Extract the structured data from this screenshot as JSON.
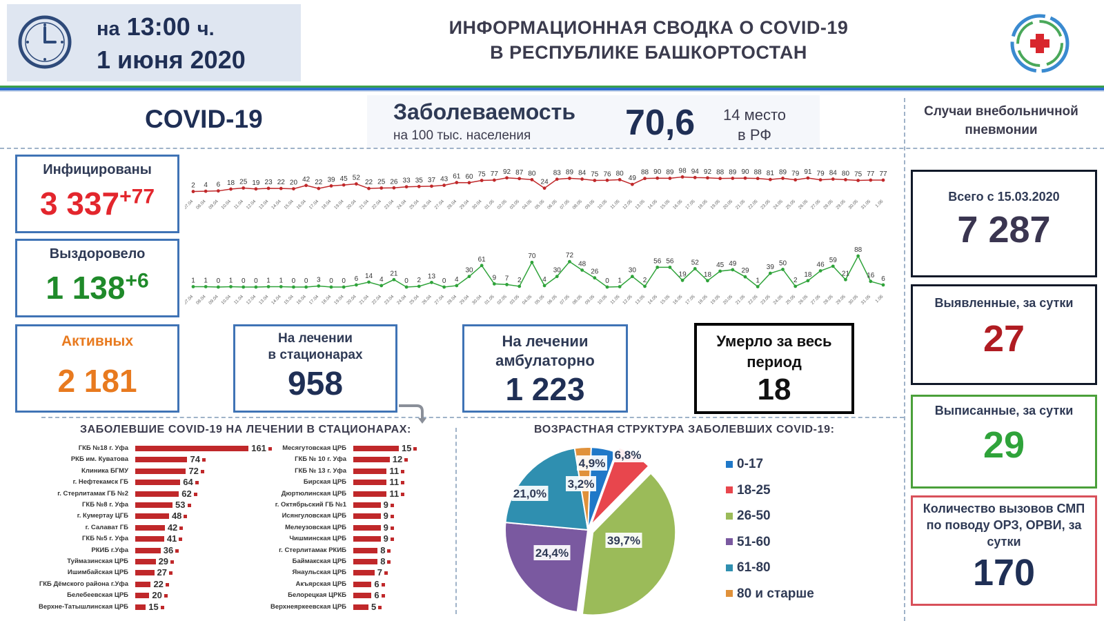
{
  "header": {
    "time_prefix": "на",
    "time": "13:00",
    "time_suffix": "ч.",
    "date": "1 июня 2020",
    "title_line1": "ИНФОРМАЦИОННАЯ СВОДКА О COVID-19",
    "title_line2": "В РЕСПУБЛИКЕ БАШКОРТОСТАН",
    "clock_icon": "clock-icon",
    "logo_icon": "medical-cross-logo"
  },
  "top": {
    "covid_label": "COVID-19",
    "incidence_label": "Заболеваемость",
    "incidence_sub": "на 100 тыс. населения",
    "incidence_value": "70,6",
    "rank_line1": "14 место",
    "rank_line2": "в РФ",
    "pneumonia_title": "Случаи внебольничной пневмонии"
  },
  "stats": {
    "infected_title": "Инфицированы",
    "infected_value": "3 337",
    "infected_delta": "+77",
    "recovered_title": "Выздоровело",
    "recovered_value": "1 138",
    "recovered_delta": "+6",
    "active_title": "Активных",
    "active_value": "2 181",
    "hosp_title_1": "На лечении",
    "hosp_title_2": "в стационарах",
    "hosp_value": "958",
    "amb_title_1": "На лечении",
    "amb_title_2": "амбулаторно",
    "amb_value": "1 223",
    "deaths_title_1": "Умерло за весь",
    "deaths_title_2": "период",
    "deaths_value": "18"
  },
  "pneumonia": {
    "total_title": "Всего с 15.03.2020",
    "total_value": "7 287",
    "detected_title": "Выявленные, за сутки",
    "detected_value": "27",
    "discharged_title": "Выписанные, за сутки",
    "discharged_value": "29",
    "calls_title": "Количество вызовов СМП по поводу ОРЗ, ОРВИ, за сутки",
    "calls_value": "170"
  },
  "colors": {
    "infected_line": "#c0282a",
    "recovered_line": "#2fa33a",
    "red": "#e3262d",
    "green": "#1f8a2a",
    "orange": "#e87a1f",
    "navy": "#1f2f55",
    "purple_navy": "#3a3550",
    "box_border": "#3f73b5"
  },
  "sections": {
    "hosp_title": "ЗАБОЛЕВШИЕ COVID-19 НА ЛЕЧЕНИИ В СТАЦИОНАРАХ:",
    "age_title": "ВОЗРАСТНАЯ СТРУКТУРА ЗАБОЛЕВШИХ COVID-19:"
  },
  "chart_data": [
    {
      "type": "line",
      "name": "daily-infected",
      "x": [
        "07.04",
        "08.04",
        "09.04",
        "10.04",
        "11.04",
        "12.04",
        "13.04",
        "14.04",
        "15.04",
        "16.04",
        "17.04",
        "18.04",
        "19.04",
        "20.04",
        "21.04",
        "22.04",
        "23.04",
        "24.04",
        "25.04",
        "26.04",
        "27.04",
        "28.04",
        "29.04",
        "30.04",
        "01.05",
        "02.05",
        "03.05",
        "04.05",
        "05.05",
        "06.05",
        "07.05",
        "08.05",
        "09.05",
        "10.05",
        "11.05",
        "12.05",
        "13.05",
        "14.05",
        "15.05",
        "16.05",
        "17.05",
        "18.05",
        "19.05",
        "20.05",
        "21.05",
        "22.05",
        "23.05",
        "24.05",
        "25.05",
        "26.05",
        "27.05",
        "28.05",
        "29.05",
        "30.05",
        "31.05",
        "1.06"
      ],
      "values": [
        2,
        4,
        6,
        18,
        25,
        19,
        23,
        22,
        20,
        42,
        22,
        39,
        45,
        52,
        22,
        25,
        26,
        33,
        35,
        37,
        43,
        61,
        60,
        75,
        77,
        92,
        87,
        80,
        24,
        83,
        89,
        84,
        75,
        76,
        80,
        49,
        88,
        90,
        89,
        98,
        94,
        92,
        88,
        89,
        90,
        88,
        81,
        89,
        79,
        91,
        79,
        84,
        80,
        75,
        77,
        77
      ]
    },
    {
      "type": "line",
      "name": "daily-recovered",
      "x": [
        "07.04",
        "08.04",
        "09.04",
        "10.04",
        "11.04",
        "12.04",
        "13.04",
        "14.04",
        "15.04",
        "16.04",
        "17.04",
        "18.04",
        "19.04",
        "20.04",
        "21.04",
        "22.04",
        "23.04",
        "24.04",
        "25.04",
        "26.04",
        "27.04",
        "28.04",
        "29.04",
        "30.04",
        "01.05",
        "02.05",
        "03.05",
        "04.05",
        "05.05",
        "06.05",
        "07.05",
        "08.05",
        "09.05",
        "10.05",
        "11.05",
        "12.05",
        "13.05",
        "14.05",
        "15.05",
        "16.05",
        "17.05",
        "18.05",
        "19.05",
        "20.05",
        "21.05",
        "22.05",
        "23.05",
        "24.05",
        "25.05",
        "26.05",
        "27.05",
        "28.05",
        "29.05",
        "30.05",
        "31.05",
        "1.06"
      ],
      "values": [
        1,
        1,
        0,
        1,
        0,
        0,
        1,
        1,
        0,
        0,
        3,
        0,
        0,
        6,
        14,
        4,
        21,
        0,
        2,
        13,
        0,
        4,
        30,
        61,
        9,
        7,
        2,
        70,
        4,
        30,
        72,
        48,
        26,
        0,
        1,
        30,
        2,
        56,
        56,
        19,
        52,
        18,
        45,
        49,
        29,
        1,
        39,
        50,
        2,
        18,
        46,
        59,
        21,
        88,
        16,
        6
      ]
    },
    {
      "type": "bar",
      "name": "hospitals-left",
      "categories": [
        "ГКБ №18 г. Уфа",
        "РКБ им. Куватова",
        "Клиника БГМУ",
        "г. Нефтекамск ГБ",
        "г. Стерлитамак ГБ №2",
        "ГКБ №8 г. Уфа",
        "г. Кумертау ЦГБ",
        "г. Салават ГБ",
        "ГКБ №5 г. Уфа",
        "РКИБ г.Уфа",
        "Туймазинская ЦРБ",
        "Ишимбайская ЦРБ",
        "ГКБ Дёмского района г.Уфа",
        "Белебеевская ЦРБ",
        "Верхне-Татышлинская ЦРБ"
      ],
      "values": [
        161,
        74,
        72,
        64,
        62,
        53,
        48,
        42,
        41,
        36,
        29,
        27,
        22,
        20,
        15
      ]
    },
    {
      "type": "bar",
      "name": "hospitals-right",
      "categories": [
        "Месягутовская ЦРБ",
        "ГКБ № 10 г. Уфа",
        "ГКБ № 13 г. Уфа",
        "Бирская ЦРБ",
        "Дюртюлинская ЦРБ",
        "г. Октябрьский ГБ №1",
        "Исянгуловская ЦРБ",
        "Мелеузовская ЦРБ",
        "Чишминская ЦРБ",
        "г. Стерлитамак РКИБ",
        "Баймакская ЦРБ",
        "Янаульская ЦРБ",
        "Акъярская ЦРБ",
        "Белорецкая ЦРКБ",
        "Верхнеяркеевская ЦРБ"
      ],
      "values": [
        15,
        12,
        11,
        11,
        11,
        9,
        9,
        9,
        9,
        8,
        8,
        7,
        6,
        6,
        5
      ]
    },
    {
      "type": "pie",
      "name": "age-structure",
      "title": "ВОЗРАСТНАЯ СТРУКТУРА ЗАБОЛЕВШИХ COVID-19:",
      "categories": [
        "0-17",
        "18-25",
        "26-50",
        "51-60",
        "61-80",
        "80 и старше"
      ],
      "values": [
        4.9,
        6.8,
        39.7,
        24.4,
        21.0,
        3.2
      ],
      "labels": [
        "4,9%",
        "6,8%",
        "39,7%",
        "24,4%",
        "21,0%",
        "3,2%"
      ],
      "colors": [
        "#1f78c8",
        "#e8464d",
        "#9bbb59",
        "#7a59a0",
        "#2f8fb0",
        "#e0913a"
      ],
      "legend": "right"
    }
  ]
}
